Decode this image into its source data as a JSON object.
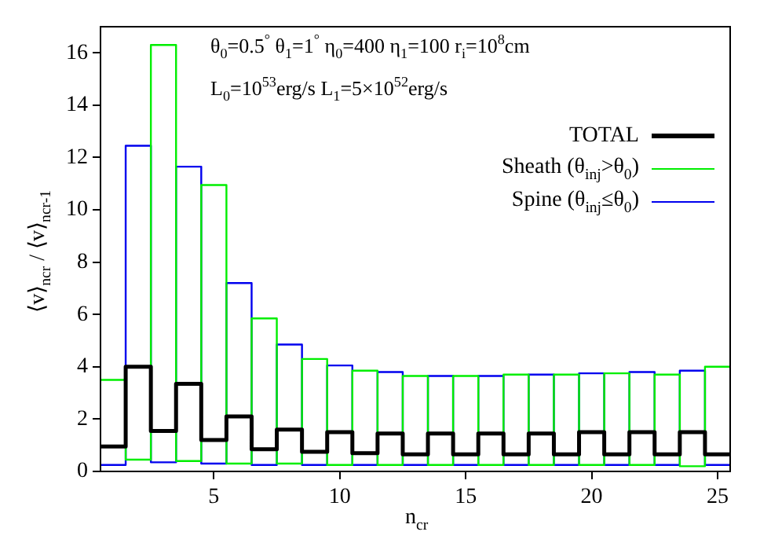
{
  "chart_data": {
    "type": "histogram",
    "xlabel": "n$_{cr}$",
    "ylabel": "⟨v⟩$_{ncr}$ / ⟨v⟩$_{ncr-1}$",
    "annotations": [
      "θ$_{0}$=0.5$^{°}$ θ$_{1}$=1$^{°}$ η$_{0}$=400 η$_{1}$=100  r$_{i}$=10$^{8}$cm",
      "L$_{0}$=10$^{53}$erg/s L$_{1}$=5×10$^{52}$erg/s"
    ],
    "bins": [
      0.5,
      1.5,
      2.5,
      3.5,
      4.5,
      5.5,
      6.5,
      7.5,
      8.5,
      9.5,
      10.5,
      11.5,
      12.5,
      13.5,
      14.5,
      15.5,
      16.5,
      17.5,
      18.5,
      19.5,
      20.5,
      21.5,
      22.5,
      23.5,
      24.5,
      25.5
    ],
    "series": [
      {
        "name": "TOTAL",
        "color": "#000000",
        "values": [
          0.95,
          4.0,
          1.55,
          3.35,
          1.2,
          2.1,
          0.85,
          1.6,
          0.75,
          1.5,
          0.7,
          1.45,
          0.65,
          1.45,
          0.65,
          1.45,
          0.65,
          1.45,
          0.65,
          1.5,
          0.65,
          1.5,
          0.65,
          1.5,
          0.65
        ]
      },
      {
        "name": "Sheath (θ$_{inj}$>θ$_{0}$)",
        "color": "#00ee00",
        "values": [
          3.5,
          0.45,
          16.3,
          0.4,
          10.95,
          0.3,
          5.85,
          0.3,
          4.3,
          0.25,
          3.85,
          0.25,
          3.65,
          0.25,
          3.65,
          0.25,
          3.7,
          0.25,
          3.7,
          0.25,
          3.75,
          0.25,
          3.7,
          0.2,
          4.0
        ]
      },
      {
        "name": "Spine (θ$_{inj}$≤θ$_{0}$)",
        "color": "#0000ee",
        "values": [
          0.25,
          12.45,
          0.35,
          11.65,
          0.3,
          7.2,
          0.25,
          4.85,
          0.25,
          4.05,
          0.25,
          3.8,
          0.25,
          3.65,
          0.25,
          3.65,
          0.25,
          3.7,
          0.25,
          3.75,
          0.25,
          3.8,
          0.25,
          3.85,
          0.25
        ]
      }
    ],
    "xlim": [
      0.5,
      25.5
    ],
    "xticks": [
      5,
      10,
      15,
      20,
      25
    ],
    "ylim": [
      0,
      17
    ],
    "yticks": [
      0,
      2,
      4,
      6,
      8,
      10,
      12,
      14,
      16
    ],
    "grid": false,
    "legend": "top right"
  }
}
